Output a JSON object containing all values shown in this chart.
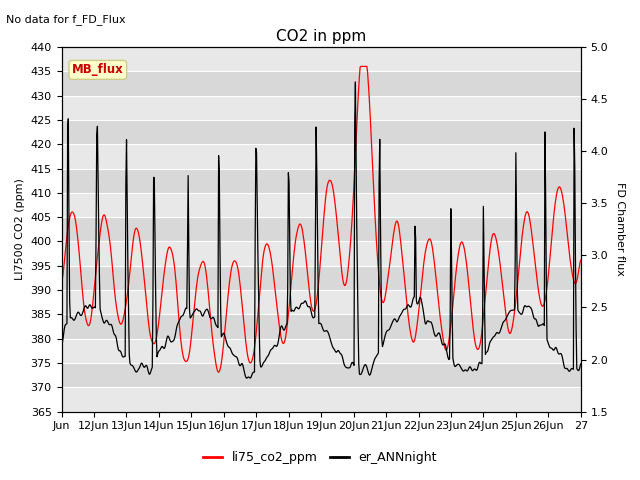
{
  "title": "CO2 in ppm",
  "top_left_text": "No data for f_FD_Flux",
  "ylabel_left": "LI7500 CO2 (ppm)",
  "ylabel_right": "FD Chamber flux",
  "ylim_left": [
    365,
    440
  ],
  "ylim_right": [
    1.5,
    5.0
  ],
  "yticks_left": [
    365,
    370,
    375,
    380,
    385,
    390,
    395,
    400,
    405,
    410,
    415,
    420,
    425,
    430,
    435,
    440
  ],
  "yticks_right": [
    1.5,
    2.0,
    2.5,
    3.0,
    3.5,
    4.0,
    4.5,
    5.0
  ],
  "xtick_labels": [
    "Jun",
    "12Jun",
    "13Jun",
    "14Jun",
    "15Jun",
    "16Jun",
    "17Jun",
    "18Jun",
    "19Jun",
    "20Jun",
    "21Jun",
    "22Jun",
    "23Jun",
    "24Jun",
    "25Jun",
    "26Jun",
    "27"
  ],
  "legend_entries": [
    "li75_co2_ppm",
    "er_ANNnight"
  ],
  "line_red_color": "#ff0000",
  "line_black_color": "#000000",
  "background_color": "#ffffff",
  "plot_bg_light": "#f0f0f0",
  "plot_bg_dark": "#e0e0e0",
  "grid_color": "#ffffff",
  "mb_flux_box_color": "#ffffcc",
  "mb_flux_text_color": "#cc0000",
  "mb_flux_border_color": "#cccc88",
  "title_fontsize": 11,
  "label_fontsize": 8,
  "tick_fontsize": 8,
  "annotation_fontsize": 8,
  "n_days": 16,
  "figsize": [
    6.4,
    4.8
  ],
  "dpi": 100
}
